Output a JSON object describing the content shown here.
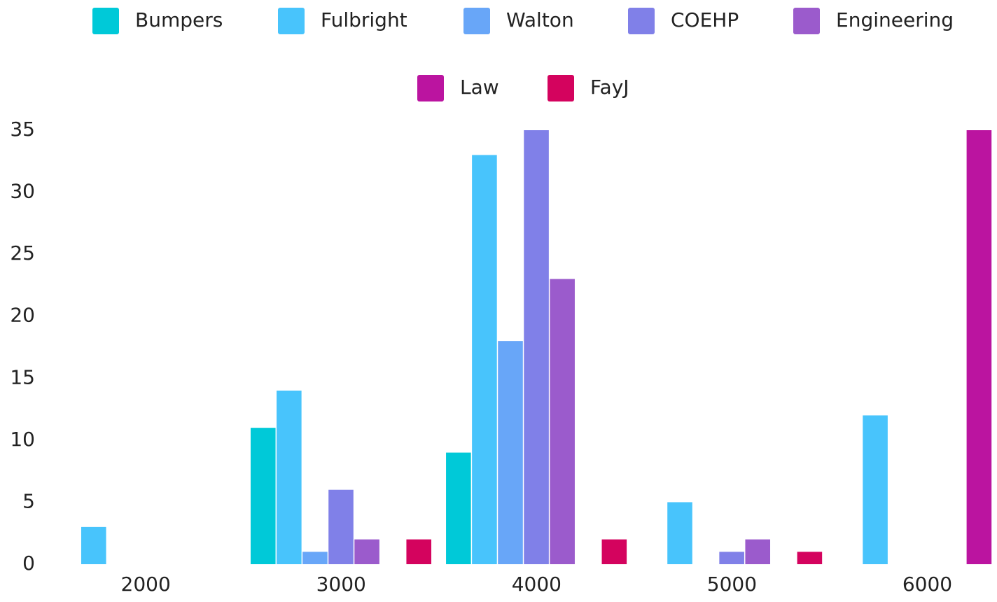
{
  "chart_data": {
    "type": "bar",
    "x": [
      2000,
      3000,
      4000,
      5000,
      6000
    ],
    "xlim": [
      1530,
      6310
    ],
    "xticks": [
      2000,
      3000,
      4000,
      5000,
      6000
    ],
    "ylim": [
      0,
      35
    ],
    "yticks": [
      0,
      5,
      10,
      15,
      20,
      25,
      30,
      35
    ],
    "grid": false,
    "legend": "top",
    "series": [
      {
        "name": "Bumpers",
        "color": "#00c9d8",
        "values": [
          0,
          11,
          9,
          0,
          0
        ]
      },
      {
        "name": "Fulbright",
        "color": "#48c4fc",
        "values": [
          3,
          14,
          33,
          5,
          12
        ]
      },
      {
        "name": "Walton",
        "color": "#68a6f8",
        "values": [
          0,
          1,
          18,
          0,
          0
        ]
      },
      {
        "name": "COEHP",
        "color": "#8080e8",
        "values": [
          0,
          6,
          35,
          1,
          0
        ]
      },
      {
        "name": "Engineering",
        "color": "#9b5bcc",
        "values": [
          0,
          2,
          23,
          2,
          0
        ]
      },
      {
        "name": "Law",
        "color": "#bb14a0",
        "values": [
          0,
          0,
          0,
          0,
          35
        ]
      },
      {
        "name": "FayJ",
        "color": "#d4035e",
        "values": [
          0,
          2,
          2,
          1,
          0
        ]
      }
    ]
  }
}
